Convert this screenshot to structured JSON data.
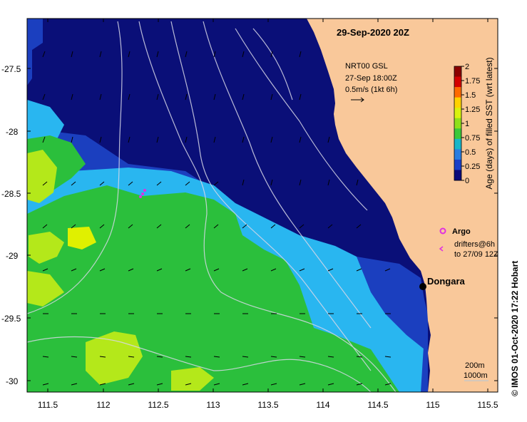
{
  "title": "29-Sep-2020 20Z",
  "current_legend": {
    "line1": "NRT00 GSL",
    "line2": "27-Sep 18:00Z",
    "line3": "0.5m/s (1kt 6h)"
  },
  "colorbar": {
    "label": "Age (days) of filled SST (wrt latest)",
    "ticks": [
      "2",
      "1.75",
      "1.5",
      "1.25",
      "1",
      "0.75",
      "0.5",
      "0.25",
      "0"
    ],
    "colors": [
      "#8b0000",
      "#d40000",
      "#ff6a00",
      "#ffd200",
      "#d9f20e",
      "#8fe01a",
      "#3bc83a",
      "#19b6c8",
      "#2a7de0",
      "#1a3fc8",
      "#0a0a7a"
    ]
  },
  "argo_legend": {
    "argo_label": "Argo",
    "drifter_line1": "drifters@6h",
    "drifter_line2": "to 27/09 12Z"
  },
  "place_label": "Dongara",
  "scale": {
    "line1": "200m",
    "line2": "1000m"
  },
  "credit": "©  IMOS 01-Oct-2020 17:22 Hobart",
  "lat_ticks": [
    "-27.5",
    "-28",
    "-28.5",
    "-29",
    "-29.5",
    "-30"
  ],
  "lon_ticks": [
    "111.5",
    "112",
    "112.5",
    "113",
    "113.5",
    "114",
    "114.5",
    "115",
    "115.5"
  ],
  "colors": {
    "land": "#f9c89a",
    "age_0": "#0a0f78",
    "age_025": "#1b3fbf",
    "age_05": "#29b6f0",
    "age_1": "#2bbf3c",
    "age_125": "#b4e81a",
    "age_15": "#e0f000"
  }
}
